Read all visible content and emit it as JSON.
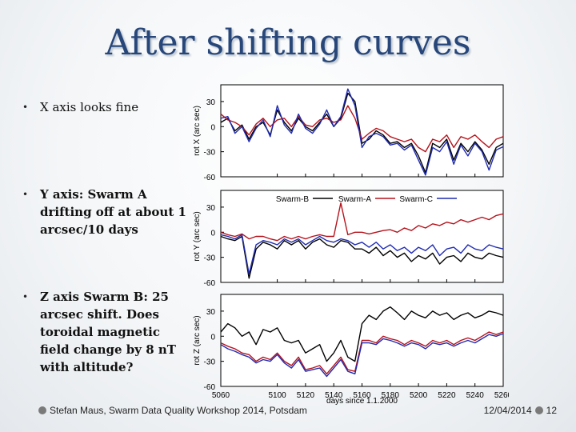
{
  "title": "After shifting curves",
  "bullets": [
    {
      "symbol": "•",
      "text": "X axis looks fine"
    },
    {
      "symbol": "•",
      "text": "Y axis: Swarm A drifting off at about 1 arcsec/10 days"
    },
    {
      "symbol": "•",
      "text": "Z axis Swarm B: 25 arcsec shift. Does toroidal magnetic field change by 8 nT with altitude?"
    }
  ],
  "footer": {
    "left_text": "Stefan Maus, Swarm Data Quality Workshop 2014, Potsdam",
    "date": "12/04/2014",
    "page": "12"
  },
  "chart_data": {
    "type": "line",
    "xlabel": "days since 1.1.2000",
    "xlim": [
      5060,
      5260
    ],
    "xticks": [
      5060,
      5100,
      5120,
      5140,
      5160,
      5180,
      5200,
      5220,
      5240,
      5260
    ],
    "series_colors": {
      "Swarm-A": "#b5121b",
      "Swarm-B": "#000000",
      "Swarm-C": "#1f2bb0"
    },
    "legend": [
      "Swarm-B",
      "Swarm-A",
      "Swarm-C"
    ],
    "panels": [
      {
        "name": "x",
        "ylabel": "rot X (arc sec)",
        "ylim": [
          -60,
          50
        ],
        "yticks": [
          30,
          0,
          -30,
          -60
        ],
        "series": [
          {
            "name": "Swarm-B",
            "x": [
              5060,
              5065,
              5070,
              5075,
              5080,
              5085,
              5090,
              5095,
              5100,
              5105,
              5110,
              5115,
              5120,
              5125,
              5130,
              5135,
              5140,
              5145,
              5150,
              5155,
              5160,
              5165,
              5170,
              5175,
              5180,
              5185,
              5190,
              5195,
              5200,
              5205,
              5210,
              5215,
              5220,
              5225,
              5230,
              5235,
              5240,
              5245,
              5250,
              5255,
              5260
            ],
            "y": [
              5,
              10,
              -5,
              2,
              -15,
              0,
              5,
              -10,
              20,
              5,
              -5,
              10,
              0,
              -5,
              5,
              15,
              0,
              10,
              40,
              30,
              -20,
              -15,
              -5,
              -10,
              -20,
              -18,
              -25,
              -20,
              -35,
              -55,
              -20,
              -25,
              -15,
              -40,
              -20,
              -30,
              -18,
              -28,
              -45,
              -25,
              -20
            ]
          },
          {
            "name": "Swarm-A",
            "x": [
              5060,
              5065,
              5070,
              5075,
              5080,
              5085,
              5090,
              5095,
              5100,
              5105,
              5110,
              5115,
              5120,
              5125,
              5130,
              5135,
              5140,
              5145,
              5150,
              5155,
              5160,
              5165,
              5170,
              5175,
              5180,
              5185,
              5190,
              5195,
              5200,
              5205,
              5210,
              5215,
              5220,
              5225,
              5230,
              5235,
              5240,
              5245,
              5250,
              5255,
              5260
            ],
            "y": [
              15,
              8,
              5,
              0,
              -10,
              3,
              10,
              0,
              8,
              10,
              0,
              12,
              2,
              0,
              8,
              10,
              5,
              8,
              25,
              10,
              -15,
              -8,
              -2,
              -5,
              -12,
              -15,
              -18,
              -15,
              -25,
              -30,
              -15,
              -18,
              -10,
              -25,
              -12,
              -15,
              -10,
              -18,
              -25,
              -15,
              -12
            ]
          },
          {
            "name": "Swarm-C",
            "x": [
              5060,
              5065,
              5070,
              5075,
              5080,
              5085,
              5090,
              5095,
              5100,
              5105,
              5110,
              5115,
              5120,
              5125,
              5130,
              5135,
              5140,
              5145,
              5150,
              5155,
              5160,
              5165,
              5170,
              5175,
              5180,
              5185,
              5190,
              5195,
              5200,
              5205,
              5210,
              5215,
              5220,
              5225,
              5230,
              5235,
              5240,
              5245,
              5250,
              5255,
              5260
            ],
            "y": [
              10,
              12,
              -8,
              0,
              -18,
              -2,
              8,
              -12,
              25,
              2,
              -8,
              15,
              -2,
              -8,
              3,
              20,
              0,
              12,
              45,
              25,
              -25,
              -12,
              -8,
              -12,
              -22,
              -20,
              -28,
              -22,
              -40,
              -58,
              -25,
              -30,
              -18,
              -45,
              -22,
              -35,
              -20,
              -30,
              -52,
              -28,
              -24
            ]
          }
        ]
      },
      {
        "name": "y",
        "ylabel": "rot Y (arc sec)",
        "ylim": [
          -60,
          50
        ],
        "yticks": [
          30,
          0,
          -30,
          -60
        ],
        "series": [
          {
            "name": "Swarm-B",
            "x": [
              5060,
              5065,
              5070,
              5075,
              5080,
              5085,
              5090,
              5095,
              5100,
              5105,
              5110,
              5115,
              5120,
              5125,
              5130,
              5135,
              5140,
              5145,
              5150,
              5155,
              5160,
              5165,
              5170,
              5175,
              5180,
              5185,
              5190,
              5195,
              5200,
              5205,
              5210,
              5215,
              5220,
              5225,
              5230,
              5235,
              5240,
              5245,
              5250,
              5255,
              5260
            ],
            "y": [
              -5,
              -8,
              -10,
              -5,
              -55,
              -20,
              -12,
              -15,
              -20,
              -10,
              -15,
              -10,
              -20,
              -12,
              -8,
              -15,
              -18,
              -10,
              -12,
              -20,
              -20,
              -25,
              -18,
              -28,
              -22,
              -30,
              -25,
              -35,
              -28,
              -32,
              -25,
              -38,
              -30,
              -28,
              -35,
              -25,
              -30,
              -32,
              -25,
              -28,
              -30
            ]
          },
          {
            "name": "Swarm-A",
            "x": [
              5060,
              5065,
              5070,
              5075,
              5080,
              5085,
              5090,
              5095,
              5100,
              5105,
              5110,
              5115,
              5120,
              5125,
              5130,
              5135,
              5140,
              5145,
              5150,
              5155,
              5160,
              5165,
              5170,
              5175,
              5180,
              5185,
              5190,
              5195,
              5200,
              5205,
              5210,
              5215,
              5220,
              5225,
              5230,
              5235,
              5240,
              5245,
              5250,
              5255,
              5260
            ],
            "y": [
              0,
              -3,
              -5,
              -2,
              -8,
              -5,
              -5,
              -8,
              -10,
              -5,
              -8,
              -5,
              -8,
              -5,
              -3,
              -5,
              -5,
              35,
              -3,
              0,
              0,
              -2,
              0,
              2,
              3,
              0,
              5,
              2,
              8,
              5,
              10,
              8,
              12,
              10,
              15,
              12,
              15,
              18,
              15,
              20,
              22
            ]
          },
          {
            "name": "Swarm-C",
            "x": [
              5060,
              5065,
              5070,
              5075,
              5080,
              5085,
              5090,
              5095,
              5100,
              5105,
              5110,
              5115,
              5120,
              5125,
              5130,
              5135,
              5140,
              5145,
              5150,
              5155,
              5160,
              5165,
              5170,
              5175,
              5180,
              5185,
              5190,
              5195,
              5200,
              5205,
              5210,
              5215,
              5220,
              5225,
              5230,
              5235,
              5240,
              5245,
              5250,
              5255,
              5260
            ],
            "y": [
              -3,
              -5,
              -8,
              -3,
              -50,
              -15,
              -10,
              -12,
              -15,
              -8,
              -12,
              -8,
              -15,
              -10,
              -5,
              -10,
              -12,
              -8,
              -10,
              -15,
              -12,
              -18,
              -12,
              -20,
              -15,
              -22,
              -18,
              -25,
              -18,
              -22,
              -15,
              -28,
              -20,
              -18,
              -25,
              -15,
              -20,
              -22,
              -15,
              -18,
              -20
            ]
          }
        ]
      },
      {
        "name": "z",
        "ylabel": "rot Z (arc sec)",
        "ylim": [
          -60,
          50
        ],
        "yticks": [
          30,
          0,
          -30,
          -60
        ],
        "series": [
          {
            "name": "Swarm-B",
            "x": [
              5060,
              5065,
              5070,
              5075,
              5080,
              5085,
              5090,
              5095,
              5100,
              5105,
              5110,
              5115,
              5120,
              5125,
              5130,
              5135,
              5140,
              5145,
              5150,
              5155,
              5160,
              5165,
              5170,
              5175,
              5180,
              5185,
              5190,
              5195,
              5200,
              5205,
              5210,
              5215,
              5220,
              5225,
              5230,
              5235,
              5240,
              5245,
              5250,
              5255,
              5260
            ],
            "y": [
              5,
              15,
              10,
              0,
              5,
              -10,
              8,
              5,
              10,
              -5,
              -8,
              -5,
              -20,
              -15,
              -10,
              -30,
              -20,
              -5,
              -25,
              -30,
              15,
              25,
              20,
              30,
              35,
              28,
              20,
              30,
              25,
              22,
              30,
              25,
              28,
              20,
              25,
              28,
              22,
              25,
              30,
              28,
              25
            ]
          },
          {
            "name": "Swarm-A",
            "x": [
              5060,
              5065,
              5070,
              5075,
              5080,
              5085,
              5090,
              5095,
              5100,
              5105,
              5110,
              5115,
              5120,
              5125,
              5130,
              5135,
              5140,
              5145,
              5150,
              5155,
              5160,
              5165,
              5170,
              5175,
              5180,
              5185,
              5190,
              5195,
              5200,
              5205,
              5210,
              5215,
              5220,
              5225,
              5230,
              5235,
              5240,
              5245,
              5250,
              5255,
              5260
            ],
            "y": [
              -8,
              -12,
              -15,
              -20,
              -22,
              -30,
              -25,
              -28,
              -20,
              -30,
              -35,
              -25,
              -40,
              -38,
              -35,
              -45,
              -35,
              -25,
              -40,
              -42,
              -5,
              -5,
              -8,
              0,
              -3,
              -5,
              -10,
              -5,
              -8,
              -12,
              -5,
              -8,
              -5,
              -10,
              -5,
              -2,
              -5,
              0,
              5,
              2,
              5
            ]
          },
          {
            "name": "Swarm-C",
            "x": [
              5060,
              5065,
              5070,
              5075,
              5080,
              5085,
              5090,
              5095,
              5100,
              5105,
              5110,
              5115,
              5120,
              5125,
              5130,
              5135,
              5140,
              5145,
              5150,
              5155,
              5160,
              5165,
              5170,
              5175,
              5180,
              5185,
              5190,
              5195,
              5200,
              5205,
              5210,
              5215,
              5220,
              5225,
              5230,
              5235,
              5240,
              5245,
              5250,
              5255,
              5260
            ],
            "y": [
              -10,
              -15,
              -18,
              -22,
              -25,
              -32,
              -28,
              -30,
              -22,
              -32,
              -38,
              -28,
              -42,
              -40,
              -38,
              -48,
              -38,
              -28,
              -42,
              -45,
              -8,
              -8,
              -10,
              -3,
              -5,
              -8,
              -12,
              -8,
              -10,
              -15,
              -8,
              -10,
              -8,
              -12,
              -8,
              -5,
              -8,
              -3,
              2,
              0,
              3
            ]
          }
        ]
      }
    ]
  }
}
